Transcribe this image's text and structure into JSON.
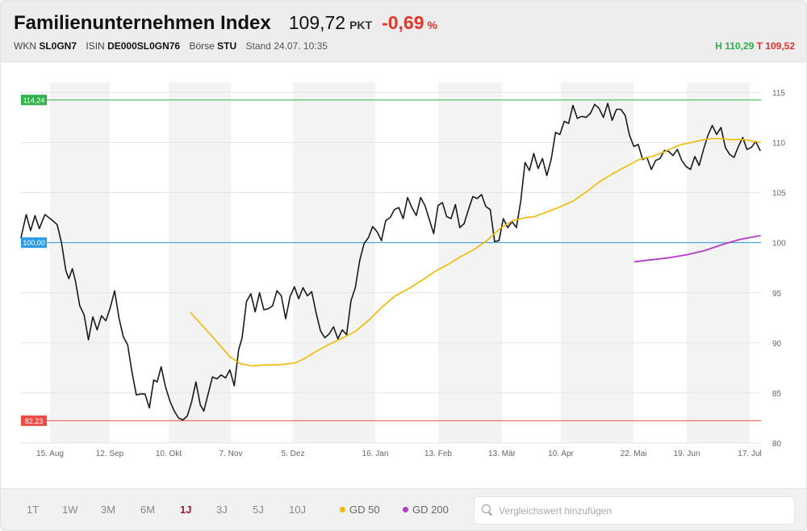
{
  "header": {
    "title": "Familienunternehmen Index",
    "price": "109,72",
    "unit": "PKT",
    "change": "-0,69",
    "change_unit": "%",
    "wkn_label": "WKN",
    "wkn": "SL0GN7",
    "isin_label": "ISIN",
    "isin": "DE000SL0GN76",
    "boerse_label": "Börse",
    "boerse": "STU",
    "stand": "Stand 24.07. 10:35",
    "high": "H 110,29",
    "low": "T 109,52",
    "colors": {
      "negative": "#e5332a",
      "high": "#2bb24c"
    }
  },
  "footer": {
    "ranges": [
      "1T",
      "1W",
      "3M",
      "6M",
      "1J",
      "3J",
      "5J",
      "10J"
    ],
    "active_range": "1J",
    "indicators": [
      {
        "label": "GD 50",
        "color": "#f5b800"
      },
      {
        "label": "GD 200",
        "color": "#b23cc4"
      }
    ],
    "search_placeholder": "Vergleichswert hinzufügen",
    "search_icon": "search-icon"
  },
  "chart_data": {
    "type": "line",
    "y_ticks": [
      80,
      85,
      90,
      95,
      100,
      105,
      110,
      115
    ],
    "ylim": [
      80,
      116
    ],
    "y_axis_position": "right",
    "x_ticks": [
      "15. Aug",
      "12. Sep",
      "10. Okt",
      "7. Nov",
      "5. Dez",
      "16. Jan",
      "13. Feb",
      "13. Mär",
      "10. Apr",
      "22. Mai",
      "19. Jun",
      "17. Jul"
    ],
    "grid": "alternating vertical bands, horizontal gridlines",
    "reference_lines": [
      {
        "label": "114,24",
        "value": 114.24,
        "color": "#33b24c"
      },
      {
        "label": "100,00",
        "value": 100.0,
        "color": "#2a9be8"
      },
      {
        "label": "82,23",
        "value": 82.23,
        "color": "#ef4a43"
      }
    ],
    "series": [
      {
        "color": "#1a1a1a",
        "points": [
          [
            0,
            100.5
          ],
          [
            1.2,
            102.8
          ],
          [
            2.2,
            101.2
          ],
          [
            3.2,
            102.7
          ],
          [
            4.2,
            101.4
          ],
          [
            5.5,
            102.8
          ],
          [
            7,
            102.3
          ],
          [
            8.3,
            101.8
          ],
          [
            9.3,
            100
          ],
          [
            10.3,
            97.2
          ],
          [
            11,
            96.4
          ],
          [
            11.8,
            97.4
          ],
          [
            12.5,
            96.2
          ],
          [
            13.5,
            93.7
          ],
          [
            14.5,
            92.8
          ],
          [
            15.5,
            90.3
          ],
          [
            16.5,
            92.6
          ],
          [
            17.5,
            91.3
          ],
          [
            18.5,
            92.7
          ],
          [
            19.5,
            92.2
          ],
          [
            20.5,
            93.5
          ],
          [
            21.5,
            95.2
          ],
          [
            22.5,
            92.5
          ],
          [
            23.5,
            90.6
          ],
          [
            24.5,
            89.8
          ],
          [
            25.5,
            87.1
          ],
          [
            26.5,
            84.8
          ],
          [
            27.5,
            84.9
          ],
          [
            28.5,
            84.9
          ],
          [
            29.5,
            83.5
          ],
          [
            30.5,
            86.3
          ],
          [
            31.3,
            86.1
          ],
          [
            32.2,
            87.6
          ],
          [
            33.2,
            85.6
          ],
          [
            34.2,
            84.2
          ],
          [
            35.2,
            83.2
          ],
          [
            36.2,
            82.5
          ],
          [
            37.2,
            82.3
          ],
          [
            38.2,
            82.7
          ],
          [
            39.2,
            84.1
          ],
          [
            40.2,
            86.1
          ],
          [
            41.2,
            83.8
          ],
          [
            42,
            83.2
          ],
          [
            43,
            84.9
          ],
          [
            44,
            86.6
          ],
          [
            45,
            86.4
          ],
          [
            46,
            86.8
          ],
          [
            47,
            86.5
          ],
          [
            48,
            87.3
          ],
          [
            49,
            85.7
          ],
          [
            50,
            89.3
          ],
          [
            50.8,
            90.5
          ],
          [
            51.8,
            94.1
          ],
          [
            52.8,
            94.9
          ],
          [
            53.8,
            93.1
          ],
          [
            54.8,
            95
          ],
          [
            55.8,
            93.3
          ],
          [
            56.8,
            93.4
          ],
          [
            57.8,
            93.7
          ],
          [
            58.8,
            95.2
          ],
          [
            59.8,
            94.7
          ],
          [
            60.8,
            92.4
          ],
          [
            61.8,
            94.6
          ],
          [
            62.8,
            95.6
          ],
          [
            63.8,
            94.4
          ],
          [
            64.8,
            95.5
          ],
          [
            65.8,
            94.7
          ],
          [
            66.8,
            95.1
          ],
          [
            67.8,
            93
          ],
          [
            68.8,
            91.2
          ],
          [
            69.8,
            90.5
          ],
          [
            70.8,
            90.9
          ],
          [
            71.8,
            91.6
          ],
          [
            72.8,
            90.4
          ],
          [
            73.8,
            91.3
          ],
          [
            74.8,
            90.8
          ],
          [
            75.8,
            94.2
          ],
          [
            76.8,
            95.5
          ],
          [
            77.8,
            98.2
          ],
          [
            78.8,
            99.9
          ],
          [
            79.8,
            100.5
          ],
          [
            80.8,
            101.6
          ],
          [
            81.8,
            101.1
          ],
          [
            82.8,
            100.2
          ],
          [
            83.8,
            102.2
          ],
          [
            84.8,
            102.5
          ],
          [
            85.8,
            103.3
          ],
          [
            86.8,
            103.5
          ],
          [
            87.8,
            102.4
          ],
          [
            88.8,
            104.5
          ],
          [
            89.8,
            103.5
          ],
          [
            90.8,
            102.7
          ],
          [
            91.8,
            104.5
          ],
          [
            92.8,
            103.7
          ],
          [
            93.8,
            102.3
          ],
          [
            94.8,
            100.9
          ],
          [
            95.8,
            103.7
          ],
          [
            96.8,
            104
          ],
          [
            97.8,
            102.6
          ],
          [
            98.8,
            102.4
          ],
          [
            99.8,
            103.8
          ],
          [
            100.8,
            101.5
          ],
          [
            101.8,
            101.9
          ],
          [
            102.8,
            103.3
          ],
          [
            103.8,
            104.6
          ],
          [
            104.8,
            104.4
          ],
          [
            105.8,
            104.8
          ],
          [
            106.8,
            103.6
          ],
          [
            107.8,
            103.3
          ],
          [
            108.8,
            100.1
          ],
          [
            109.8,
            100.2
          ],
          [
            110.8,
            102.4
          ],
          [
            111.8,
            101.5
          ],
          [
            112.8,
            102.1
          ],
          [
            113.8,
            101.5
          ],
          [
            114.8,
            104.1
          ],
          [
            115.8,
            108
          ],
          [
            116.8,
            107.2
          ],
          [
            117.8,
            108.9
          ],
          [
            118.8,
            107.4
          ],
          [
            119.8,
            108.4
          ],
          [
            120.8,
            106.7
          ],
          [
            121.8,
            108.3
          ],
          [
            122.8,
            111
          ],
          [
            123.8,
            110.8
          ],
          [
            124.8,
            112.1
          ],
          [
            125.8,
            111.9
          ],
          [
            126.8,
            113.7
          ],
          [
            127.8,
            112.4
          ],
          [
            128.8,
            112.6
          ],
          [
            129.8,
            112.5
          ],
          [
            130.8,
            112.9
          ],
          [
            131.8,
            113.8
          ],
          [
            132.8,
            113.4
          ],
          [
            133.8,
            112.5
          ],
          [
            134.8,
            113.9
          ],
          [
            135.8,
            112.2
          ],
          [
            136.8,
            113.3
          ],
          [
            137.8,
            113.3
          ],
          [
            138.8,
            112.7
          ],
          [
            139.8,
            110.7
          ],
          [
            140.8,
            109.6
          ],
          [
            141.8,
            109.8
          ],
          [
            142.8,
            108.3
          ],
          [
            143.8,
            108.5
          ],
          [
            144.8,
            107.3
          ],
          [
            145.8,
            108.2
          ],
          [
            146.8,
            108.4
          ],
          [
            147.8,
            109.2
          ],
          [
            148.8,
            109.1
          ],
          [
            149.8,
            108.7
          ],
          [
            150.8,
            109.3
          ],
          [
            151.8,
            108.2
          ],
          [
            152.8,
            107.6
          ],
          [
            153.8,
            107.3
          ],
          [
            154.8,
            108.6
          ],
          [
            155.8,
            107.7
          ],
          [
            156.8,
            109.3
          ],
          [
            157.8,
            110.7
          ],
          [
            158.8,
            111.7
          ],
          [
            159.8,
            110.8
          ],
          [
            160.8,
            111.5
          ],
          [
            161.8,
            109.5
          ],
          [
            162.8,
            108.8
          ],
          [
            163.8,
            108.5
          ],
          [
            164.8,
            109.6
          ],
          [
            165.8,
            110.5
          ],
          [
            166.8,
            109.3
          ],
          [
            167.8,
            109.5
          ],
          [
            168.8,
            110.1
          ],
          [
            169.8,
            109.2
          ]
        ]
      },
      {
        "name": "GD 50",
        "color": "#f5b800",
        "points": [
          [
            39,
            93.0
          ],
          [
            44,
            90.6
          ],
          [
            48,
            88.6
          ],
          [
            50.5,
            87.9
          ],
          [
            53,
            87.7
          ],
          [
            56,
            87.8
          ],
          [
            59,
            87.8
          ],
          [
            61,
            87.9
          ],
          [
            63,
            88.0
          ],
          [
            65,
            88.4
          ],
          [
            68,
            89.2
          ],
          [
            71,
            89.9
          ],
          [
            74,
            90.5
          ],
          [
            77,
            91.2
          ],
          [
            80,
            92.3
          ],
          [
            83,
            93.6
          ],
          [
            86,
            94.7
          ],
          [
            89,
            95.4
          ],
          [
            92,
            96.2
          ],
          [
            95,
            97.1
          ],
          [
            98,
            97.8
          ],
          [
            101,
            98.6
          ],
          [
            104,
            99.3
          ],
          [
            107,
            100.2
          ],
          [
            110,
            101.4
          ],
          [
            113,
            102.2
          ],
          [
            116,
            102.5
          ],
          [
            118,
            102.6
          ],
          [
            121,
            103.1
          ],
          [
            124,
            103.6
          ],
          [
            127,
            104.2
          ],
          [
            130,
            105.1
          ],
          [
            133,
            106.1
          ],
          [
            136,
            106.9
          ],
          [
            139,
            107.6
          ],
          [
            142,
            108.3
          ],
          [
            145,
            108.6
          ],
          [
            148,
            109.1
          ],
          [
            151,
            109.7
          ],
          [
            154,
            110.0
          ],
          [
            157,
            110.3
          ],
          [
            160,
            110.4
          ],
          [
            163,
            110.3
          ],
          [
            166,
            110.3
          ],
          [
            169.8,
            110.0
          ]
        ]
      },
      {
        "name": "GD 200",
        "color": "#b23cc4",
        "points": [
          [
            141,
            98.1
          ],
          [
            145,
            98.3
          ],
          [
            149,
            98.5
          ],
          [
            153,
            98.8
          ],
          [
            157,
            99.2
          ],
          [
            161,
            99.8
          ],
          [
            165,
            100.3
          ],
          [
            169.8,
            100.7
          ]
        ]
      }
    ]
  }
}
